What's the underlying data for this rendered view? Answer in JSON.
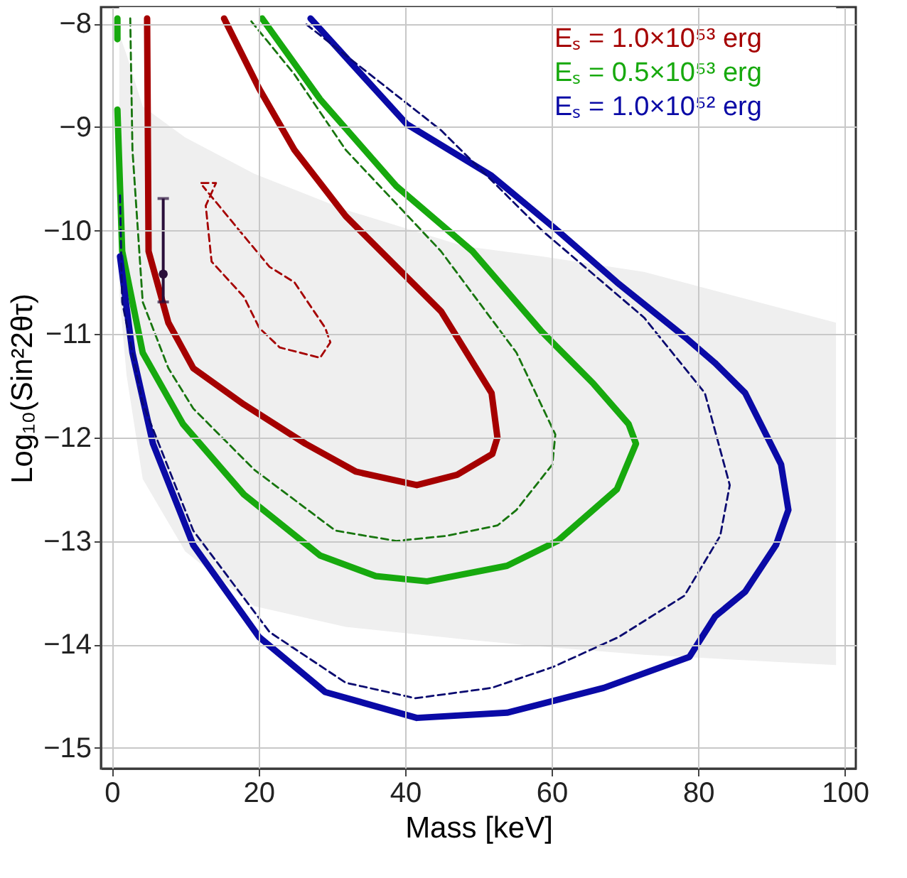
{
  "chart_data": {
    "type": "line",
    "xlabel": "Mass [keV]",
    "ylabel": "Log₁₀(Sin²2θτ)",
    "xlim": [
      -1.5,
      101.5
    ],
    "ylim": [
      -15.2,
      -7.84
    ],
    "xticks": [
      0,
      20,
      40,
      60,
      80,
      100
    ],
    "yticks": [
      -15,
      -14,
      -13,
      -12,
      -11,
      -10,
      -9,
      -8
    ],
    "grid": true,
    "legend": "top right",
    "series": [
      {
        "type": "area",
        "color": "#efefef",
        "x": [
          1,
          2,
          4.2,
          10,
          19.4,
          31.9,
          48,
          58.7,
          72.6,
          98.8
        ],
        "values": [
          -10.6,
          -11.4,
          -12.4,
          -13.1,
          -13.63,
          -13.83,
          -13.95,
          -14.02,
          -14.1,
          -14.2
        ]
      },
      {
        "type": "area",
        "color": "#ffffff",
        "x": [
          1,
          2,
          4.2,
          10,
          19.4,
          31.9,
          48,
          58.7,
          72.6,
          98.8
        ],
        "values": [
          -8.1,
          -8.3,
          -8.8,
          -9.1,
          -9.45,
          -9.8,
          -10.15,
          -10.25,
          -10.4,
          -10.89
        ]
      },
      {
        "name": "Eₛ = 1.0×10⁵³ erg",
        "color": "#a50000",
        "line_style": "solid",
        "x": [
          4.8,
          5.0,
          7.7,
          11.1,
          18.0,
          26.4,
          33.3,
          41.6,
          47.1,
          51.9,
          52.6,
          51.8,
          44.9,
          31.9,
          24.9,
          20.1,
          15.3
        ],
        "values": [
          -7.95,
          -10.2,
          -10.89,
          -11.33,
          -11.68,
          -12.06,
          -12.33,
          -12.46,
          -12.36,
          -12.16,
          -12.0,
          -11.57,
          -10.78,
          -9.86,
          -9.22,
          -8.63,
          -7.95
        ]
      },
      {
        "color": "#a50000",
        "line_style": "dashed",
        "x": [
          12.2,
          14.2,
          12.8,
          13.6,
          18.0,
          20.1,
          22.9,
          28.4,
          29.8,
          29.1,
          24.9,
          21.5,
          17.4,
          12.4
        ],
        "values": [
          -9.54,
          -9.54,
          -9.76,
          -10.3,
          -10.64,
          -10.94,
          -11.13,
          -11.23,
          -11.08,
          -10.94,
          -10.5,
          -10.35,
          -10.0,
          -9.57
        ]
      },
      {
        "name": "Eₛ = 0.5×10⁵³ erg",
        "color": "#17a90e",
        "line_style": "solid",
        "x": [
          0.75,
          0.75,
          null,
          0.75,
          1.4,
          4.2,
          9.7,
          18.0,
          28.4,
          36.0,
          43.0,
          53.9,
          60.8,
          68.9,
          71.5,
          70.5,
          65.7,
          58.7,
          49.2,
          38.8,
          28.4,
          20.5
        ],
        "values": [
          -7.95,
          -8.15,
          null,
          -8.83,
          -10.2,
          -11.18,
          -11.87,
          -12.55,
          -13.14,
          -13.34,
          -13.39,
          -13.24,
          -13.0,
          -12.5,
          -12.06,
          -11.87,
          -11.48,
          -10.98,
          -10.2,
          -9.57,
          -8.73,
          -7.95
        ]
      },
      {
        "color": "#17750e",
        "line_style": "dashed",
        "x": [
          2.5,
          2.8,
          4.2,
          7.7,
          11.1,
          19.4,
          30.5,
          38.8,
          45.7,
          52.6,
          55.2,
          60.1,
          60.5,
          55.2,
          44.9,
          31.9,
          24.9,
          18.7
        ],
        "values": [
          -7.95,
          -9.22,
          -10.69,
          -11.33,
          -11.72,
          -12.31,
          -12.9,
          -13.0,
          -12.95,
          -12.85,
          -12.7,
          -12.26,
          -11.97,
          -11.18,
          -10.2,
          -9.22,
          -8.49,
          -7.95
        ]
      },
      {
        "name": "Eₛ = 1.0×10⁵² erg",
        "color": "#0a0aa6",
        "line_style": "solid",
        "x": [
          1.1,
          2.8,
          5.6,
          11.1,
          20.1,
          29.1,
          41.6,
          53.9,
          67.1,
          78.8,
          82.3,
          86.4,
          90.6,
          92.3,
          91.3,
          86.4,
          82.3,
          78.2,
          68.9,
          60.8,
          51.8,
          40.2,
          27.1
        ],
        "values": [
          -10.25,
          -11.18,
          -12.06,
          -13.04,
          -13.93,
          -14.46,
          -14.71,
          -14.66,
          -14.42,
          -14.12,
          -13.73,
          -13.49,
          -13.04,
          -12.7,
          -12.26,
          -11.57,
          -11.28,
          -11.03,
          -10.5,
          -10.0,
          -9.47,
          -8.97,
          -7.95
        ]
      },
      {
        "color": "#0a0a70",
        "line_style": "dashed",
        "x": [
          1.1,
          1.4,
          4.2,
          11.1,
          21.5,
          31.9,
          41.4,
          51.8,
          60.1,
          69.1,
          78.1,
          83.0,
          84.3,
          80.9,
          72.6,
          58.7,
          44.9,
          26.4
        ],
        "values": [
          -9.66,
          -10.69,
          -11.67,
          -12.9,
          -13.88,
          -14.37,
          -14.52,
          -14.42,
          -14.22,
          -13.93,
          -13.53,
          -12.95,
          -12.46,
          -11.57,
          -10.84,
          -10.0,
          -9.03,
          -8.0
        ]
      },
      {
        "type": "scatter",
        "color": "#2a0f3a",
        "marker": "circle",
        "x": [
          7.0
        ],
        "values": [
          -10.42
        ],
        "errors": [
          [
            -10.69,
            -9.69
          ]
        ]
      }
    ]
  }
}
